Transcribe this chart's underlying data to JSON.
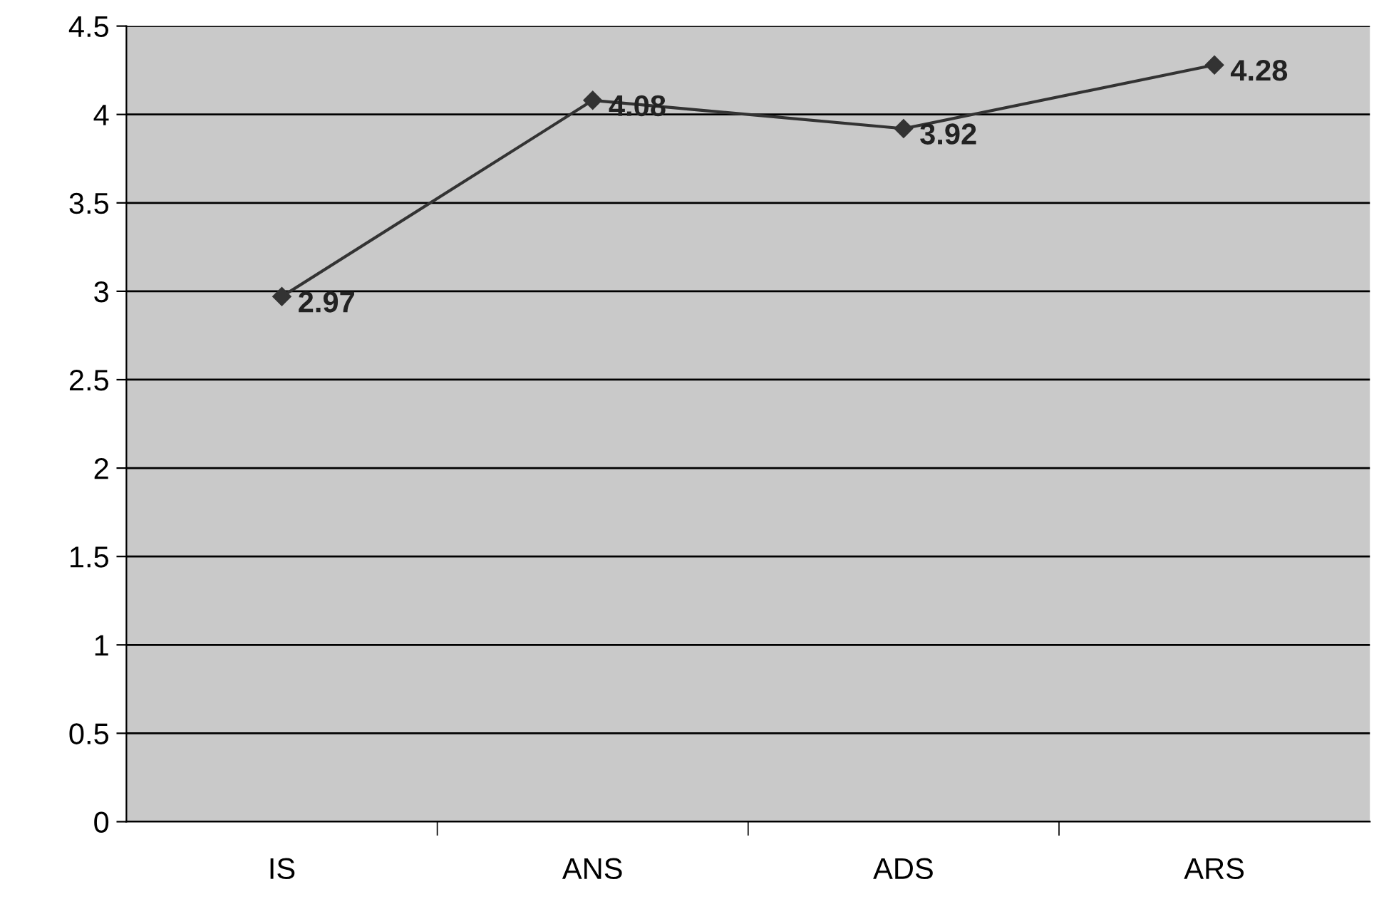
{
  "chart_data": {
    "type": "line",
    "categories": [
      "IS",
      "ANS",
      "ADS",
      "ARS"
    ],
    "series": [
      {
        "color": "#333333",
        "values": [
          2.97,
          4.08,
          3.92,
          4.28
        ]
      }
    ],
    "ylim": [
      0,
      4.5
    ],
    "yticks": [
      0,
      0.5,
      1,
      1.5,
      2,
      2.5,
      3,
      3.5,
      4,
      4.5
    ],
    "grid": "y",
    "legend": false,
    "marker": "diamond",
    "line_style": "solid",
    "data_labels": true
  }
}
